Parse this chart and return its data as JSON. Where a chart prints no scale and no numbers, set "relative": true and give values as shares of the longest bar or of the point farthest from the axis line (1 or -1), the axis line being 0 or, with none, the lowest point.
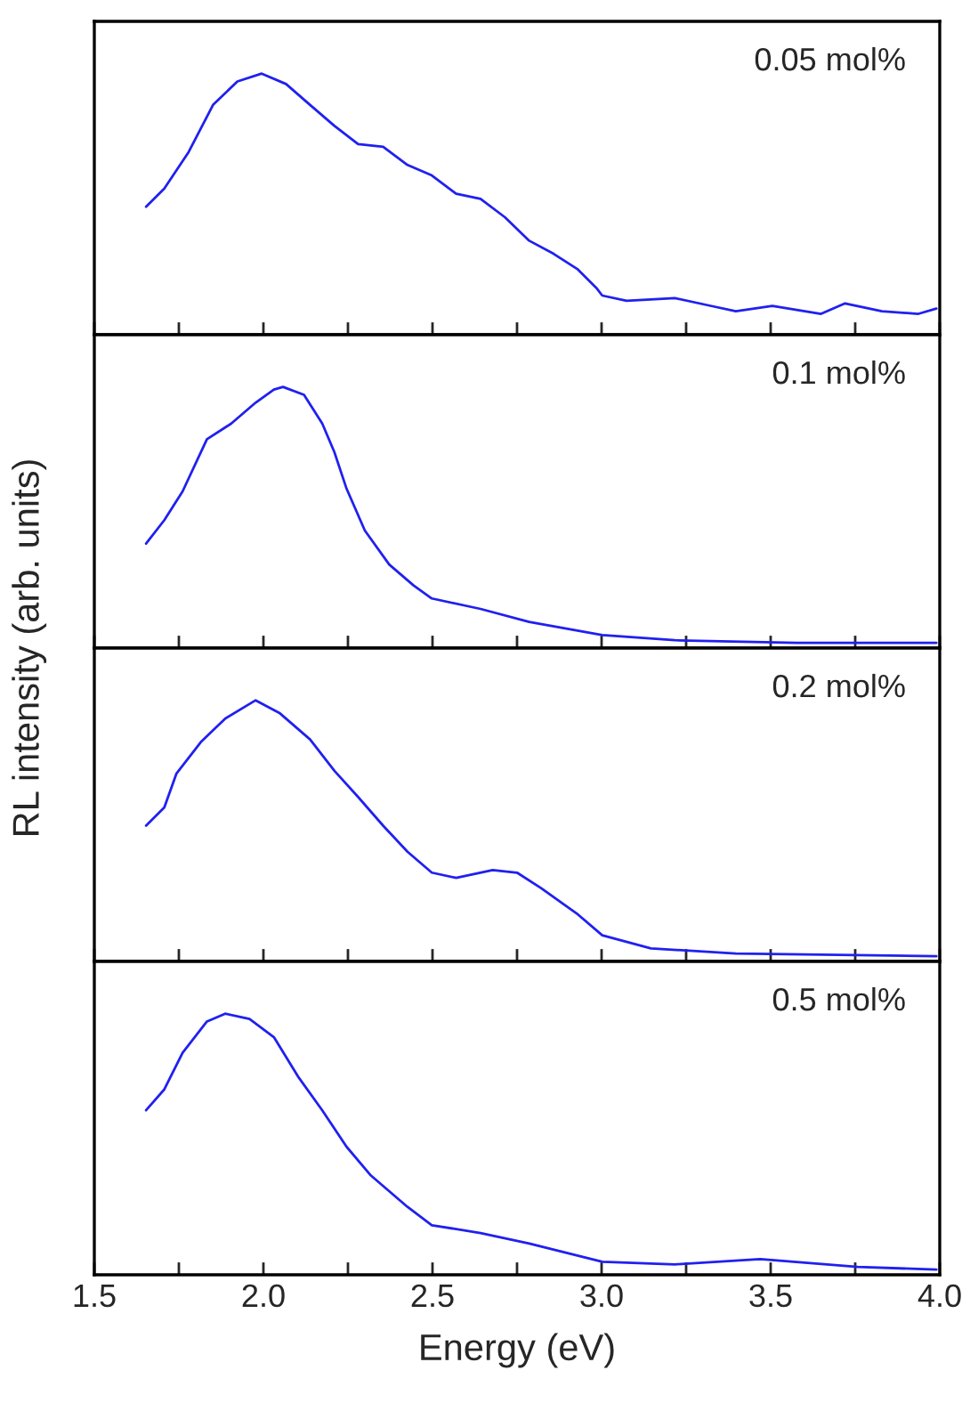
{
  "chart_data": [
    {
      "type": "line",
      "relative": true,
      "ylabel": "RL intensity (arb. units)",
      "annotations": [
        "0.05 mol%"
      ],
      "xlim": [
        1.5,
        4.0
      ],
      "xticks": [
        1.5,
        {
          "value": 1.75,
          "label": null
        },
        2.0,
        {
          "value": 2.25,
          "label": null
        },
        2.5,
        {
          "value": 2.75,
          "label": null
        },
        3.0,
        {
          "value": 3.25,
          "label": null
        },
        3.5,
        {
          "value": 3.75,
          "label": null
        },
        4.0
      ],
      "tick_labels": false,
      "grid": false,
      "x": [
        1.653,
        1.707,
        1.779,
        1.851,
        1.923,
        1.995,
        2.067,
        2.138,
        2.21,
        2.28,
        2.354,
        2.426,
        2.498,
        2.57,
        2.642,
        2.714,
        2.786,
        2.858,
        2.93,
        2.984,
        3.002,
        3.074,
        3.217,
        3.325,
        3.397,
        3.505,
        3.649,
        3.72,
        3.829,
        3.937,
        3.99
      ],
      "series": [
        {
          "color": "#2020f0",
          "values": [
            0.49,
            0.56,
            0.7,
            0.88,
            0.97,
            1.0,
            0.96,
            0.88,
            0.8,
            0.73,
            0.72,
            0.65,
            0.61,
            0.54,
            0.52,
            0.45,
            0.36,
            0.31,
            0.25,
            0.18,
            0.15,
            0.13,
            0.14,
            0.11,
            0.09,
            0.11,
            0.08,
            0.12,
            0.09,
            0.08,
            0.1
          ]
        }
      ]
    },
    {
      "type": "line",
      "relative": true,
      "annotations": [
        "0.1 mol%"
      ],
      "xlim": [
        1.5,
        4.0
      ],
      "xticks": [
        1.5,
        {
          "value": 1.75,
          "label": null
        },
        2.0,
        {
          "value": 2.25,
          "label": null
        },
        2.5,
        {
          "value": 2.75,
          "label": null
        },
        3.0,
        {
          "value": 3.25,
          "label": null
        },
        3.5,
        {
          "value": 3.75,
          "label": null
        },
        4.0
      ],
      "tick_labels": false,
      "grid": false,
      "x": [
        1.653,
        1.707,
        1.761,
        1.833,
        1.905,
        1.977,
        2.031,
        2.058,
        2.12,
        2.174,
        2.21,
        2.246,
        2.3,
        2.372,
        2.444,
        2.498,
        2.642,
        2.786,
        3.002,
        3.217,
        3.577,
        3.99
      ],
      "series": [
        {
          "color": "#2020f0",
          "values": [
            0.4,
            0.49,
            0.6,
            0.8,
            0.86,
            0.94,
            0.99,
            1.0,
            0.97,
            0.86,
            0.75,
            0.61,
            0.45,
            0.32,
            0.24,
            0.19,
            0.15,
            0.1,
            0.05,
            0.03,
            0.02,
            0.02
          ]
        }
      ]
    },
    {
      "type": "line",
      "relative": true,
      "annotations": [
        "0.2 mol%"
      ],
      "xlim": [
        1.5,
        4.0
      ],
      "xticks": [
        1.5,
        {
          "value": 1.75,
          "label": null
        },
        2.0,
        {
          "value": 2.25,
          "label": null
        },
        2.5,
        {
          "value": 2.75,
          "label": null
        },
        3.0,
        {
          "value": 3.25,
          "label": null
        },
        3.5,
        {
          "value": 3.75,
          "label": null
        },
        4.0
      ],
      "tick_labels": false,
      "grid": false,
      "x": [
        1.653,
        1.707,
        1.743,
        1.815,
        1.887,
        1.977,
        2.049,
        2.138,
        2.21,
        2.28,
        2.354,
        2.426,
        2.498,
        2.57,
        2.678,
        2.75,
        2.822,
        2.93,
        3.002,
        3.146,
        3.397,
        3.99
      ],
      "series": [
        {
          "color": "#2020f0",
          "values": [
            0.52,
            0.59,
            0.72,
            0.84,
            0.93,
            1.0,
            0.95,
            0.85,
            0.73,
            0.63,
            0.52,
            0.42,
            0.34,
            0.32,
            0.35,
            0.34,
            0.28,
            0.18,
            0.1,
            0.05,
            0.03,
            0.02
          ]
        }
      ]
    },
    {
      "type": "line",
      "relative": true,
      "xlabel": "Energy (eV)",
      "annotations": [
        "0.5 mol%"
      ],
      "xlim": [
        1.5,
        4.0
      ],
      "xticks": [
        1.5,
        {
          "value": 1.75,
          "label": null
        },
        {
          "value": 2.0,
          "label": "2.0"
        },
        {
          "value": 2.25,
          "label": null
        },
        2.5,
        {
          "value": 2.75,
          "label": null
        },
        {
          "value": 3.0,
          "label": "3.0"
        },
        {
          "value": 3.25,
          "label": null
        },
        3.5,
        {
          "value": 3.75,
          "label": null
        },
        {
          "value": 4.0,
          "label": "4.0"
        }
      ],
      "tick_labels": "x",
      "grid": false,
      "x": [
        1.653,
        1.707,
        1.761,
        1.833,
        1.887,
        1.959,
        2.031,
        2.102,
        2.174,
        2.246,
        2.318,
        2.426,
        2.498,
        2.642,
        2.786,
        3.002,
        3.217,
        3.469,
        3.757,
        3.99
      ],
      "series": [
        {
          "color": "#2020f0",
          "values": [
            0.63,
            0.71,
            0.85,
            0.97,
            1.0,
            0.98,
            0.91,
            0.76,
            0.63,
            0.49,
            0.38,
            0.26,
            0.19,
            0.16,
            0.12,
            0.05,
            0.04,
            0.06,
            0.03,
            0.02
          ]
        }
      ]
    }
  ]
}
